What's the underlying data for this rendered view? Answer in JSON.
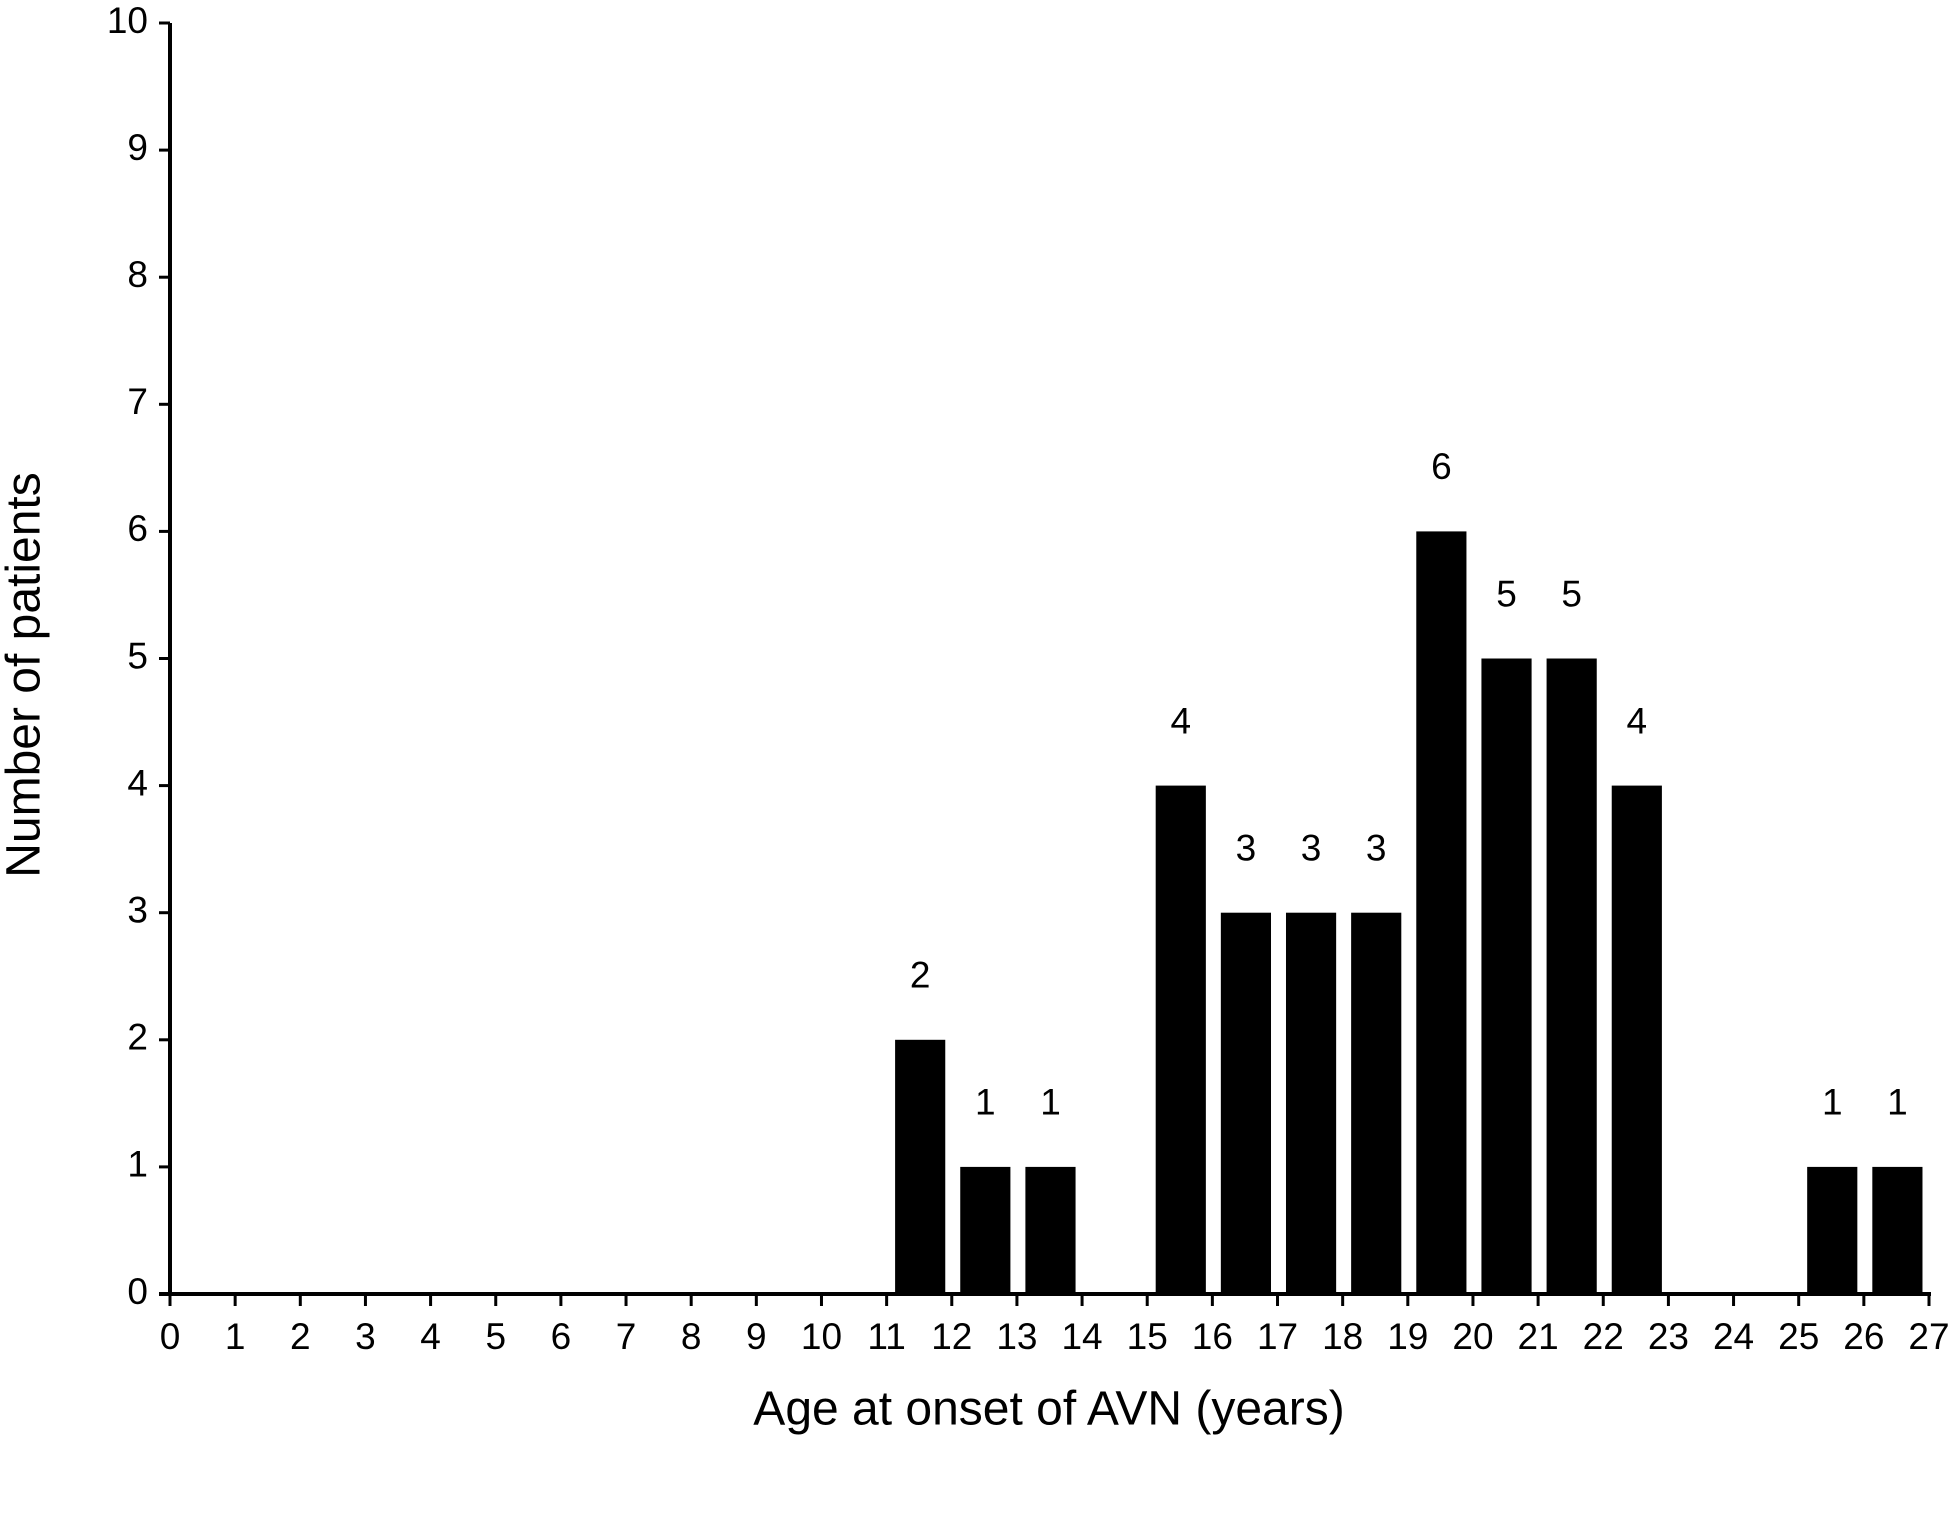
{
  "chart_data": {
    "type": "histogram",
    "x_label": "Age at onset of AVN (years)",
    "y_label": "Number of patients",
    "bins": [
      0,
      1,
      2,
      3,
      4,
      5,
      6,
      7,
      8,
      9,
      10,
      11,
      12,
      13,
      14,
      15,
      16,
      17,
      18,
      19,
      20,
      21,
      22,
      23,
      24,
      25,
      26,
      27
    ],
    "values": [
      0,
      0,
      0,
      0,
      0,
      0,
      0,
      0,
      0,
      0,
      0,
      2,
      1,
      1,
      0,
      4,
      3,
      3,
      3,
      6,
      5,
      5,
      4,
      0,
      0,
      1,
      1
    ],
    "color": "#000000",
    "xlim": [
      0,
      27
    ],
    "xticks": [
      0,
      1,
      2,
      3,
      4,
      5,
      6,
      7,
      8,
      9,
      10,
      11,
      12,
      13,
      14,
      15,
      16,
      17,
      18,
      19,
      20,
      21,
      22,
      23,
      24,
      25,
      26,
      27
    ],
    "ylim": [
      0,
      10
    ],
    "yticks": [
      0,
      1,
      2,
      3,
      4,
      5,
      6,
      7,
      8,
      9,
      10
    ]
  }
}
